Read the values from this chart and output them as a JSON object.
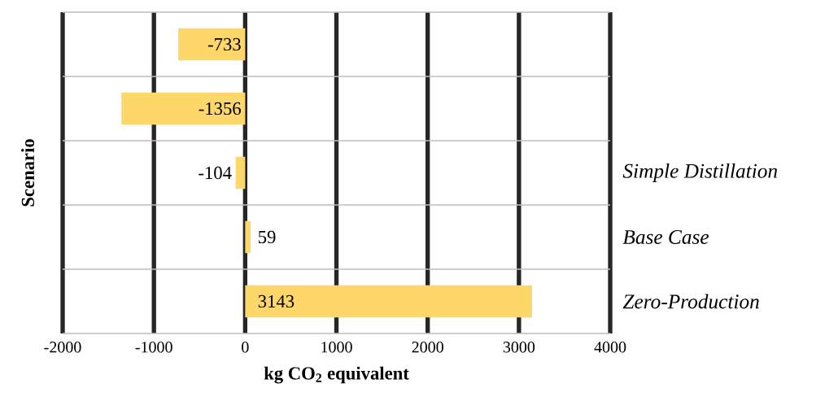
{
  "chart_data": {
    "type": "bar",
    "orientation": "horizontal",
    "categories": [
      null,
      null,
      "Simple Distillation",
      "Base Case",
      "Zero-Production"
    ],
    "values": [
      -733,
      -1356,
      -104,
      59,
      3143
    ],
    "color": "#fdd76a",
    "xlim": [
      -2000,
      4000
    ],
    "xticks": [
      -2000,
      -1000,
      0,
      1000,
      2000,
      3000,
      4000
    ],
    "xlabel": "kg CO$_{2}$ equivalent",
    "ylabel": "Scenario",
    "data_labels": true,
    "grid": true
  }
}
